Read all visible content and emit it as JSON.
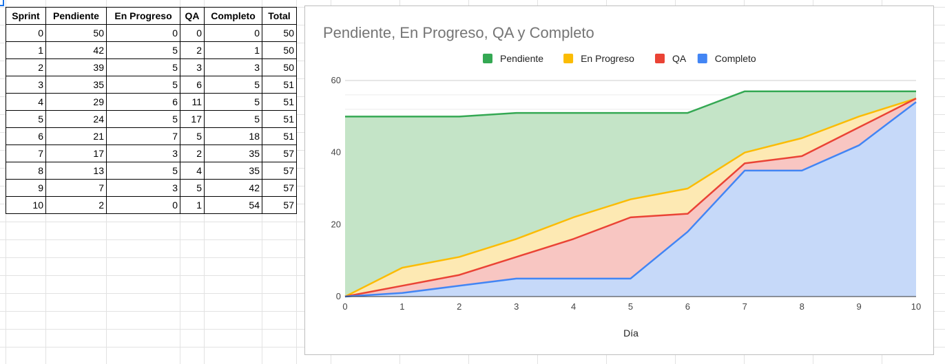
{
  "table": {
    "headers": [
      "Sprint",
      "Pendiente",
      "En Progreso",
      "QA",
      "Completo",
      "Total"
    ],
    "rows": [
      [
        "0",
        "50",
        "0",
        "0",
        "0",
        "50"
      ],
      [
        "1",
        "42",
        "5",
        "2",
        "1",
        "50"
      ],
      [
        "2",
        "39",
        "5",
        "3",
        "3",
        "50"
      ],
      [
        "3",
        "35",
        "5",
        "6",
        "5",
        "51"
      ],
      [
        "4",
        "29",
        "6",
        "11",
        "5",
        "51"
      ],
      [
        "5",
        "24",
        "5",
        "17",
        "5",
        "51"
      ],
      [
        "6",
        "21",
        "7",
        "5",
        "18",
        "51"
      ],
      [
        "7",
        "17",
        "3",
        "2",
        "35",
        "57"
      ],
      [
        "8",
        "13",
        "5",
        "4",
        "35",
        "57"
      ],
      [
        "9",
        "7",
        "3",
        "5",
        "42",
        "57"
      ],
      [
        "10",
        "2",
        "0",
        "1",
        "54",
        "57"
      ]
    ]
  },
  "chart_data": {
    "type": "area",
    "stacked": true,
    "title": "Pendiente, En Progreso, QA y Completo",
    "xlabel": "Día",
    "ylabel": "",
    "x": [
      0,
      1,
      2,
      3,
      4,
      5,
      6,
      7,
      8,
      9,
      10
    ],
    "xlim": [
      0,
      10
    ],
    "ylim": [
      0,
      60
    ],
    "yticks": [
      0,
      20,
      40,
      60
    ],
    "grid": true,
    "legend_position": "top",
    "series": [
      {
        "name": "Pendiente",
        "color": "#34a853",
        "fill": "#c4e4c7",
        "values": [
          50,
          42,
          39,
          35,
          29,
          24,
          21,
          17,
          13,
          7,
          2
        ]
      },
      {
        "name": "En Progreso",
        "color": "#fbbc04",
        "fill": "#fde9b3",
        "values": [
          0,
          5,
          5,
          5,
          6,
          5,
          7,
          3,
          5,
          3,
          0
        ]
      },
      {
        "name": "QA",
        "color": "#ea4335",
        "fill": "#f8c6c2",
        "values": [
          0,
          2,
          3,
          6,
          11,
          17,
          5,
          2,
          4,
          5,
          1
        ]
      },
      {
        "name": "Completo",
        "color": "#4285f4",
        "fill": "#c6d9f9",
        "values": [
          0,
          1,
          3,
          5,
          5,
          5,
          18,
          35,
          35,
          42,
          54
        ]
      }
    ]
  }
}
